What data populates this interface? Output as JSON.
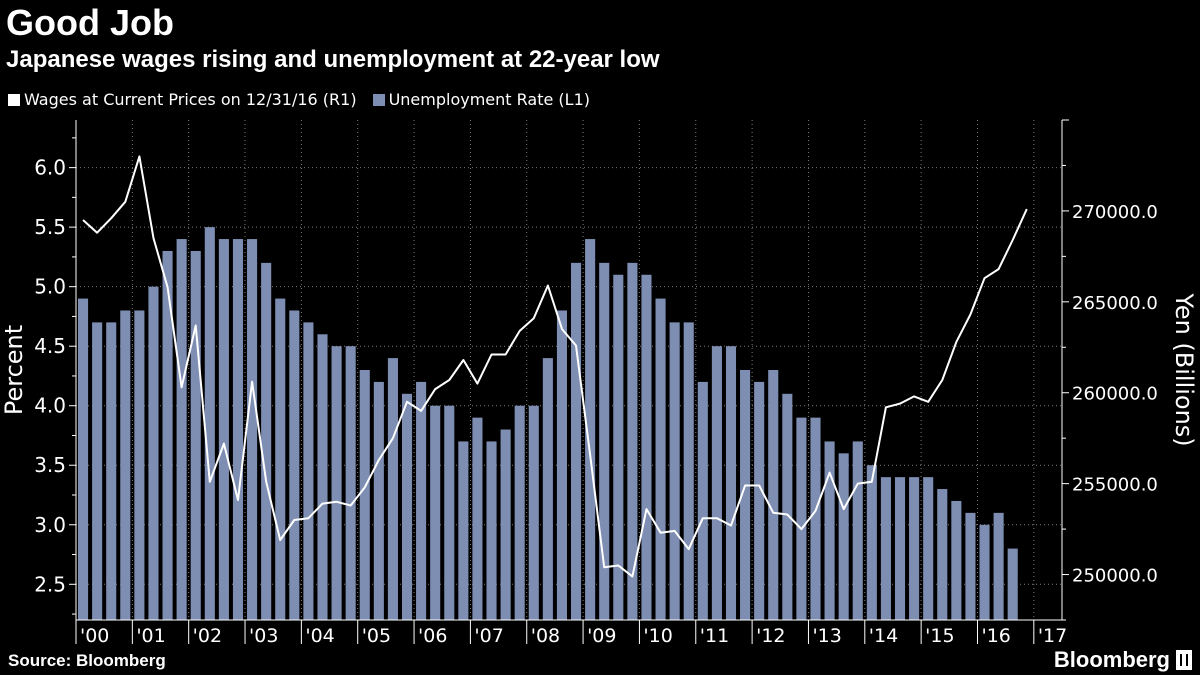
{
  "header": {
    "title": "Good Job",
    "subtitle": "Japanese wages rising and unemployment at 22-year low"
  },
  "legend": {
    "wages_label": "Wages at Current Prices on 12/31/16 (R1)",
    "unemployment_label": "Unemployment Rate (L1)"
  },
  "footer": {
    "source": "Source: Bloomberg",
    "brand": "Bloomberg"
  },
  "colors": {
    "background": "#000000",
    "bars": "#7e8eb3",
    "line": "#ffffff",
    "grid": "#7a7a7a"
  },
  "chart_data": {
    "type": "bar+line",
    "title": "Good Job",
    "subtitle": "Japanese wages rising and unemployment at 22-year low",
    "xlabel": "",
    "ylabel_left": "Percent",
    "ylabel_right": "Yen (Billions)",
    "ylim_left": [
      2.2,
      6.4
    ],
    "ylim_right": [
      247500,
      275000
    ],
    "yticks_left": [
      2.5,
      3.0,
      3.5,
      4.0,
      4.5,
      5.0,
      5.5,
      6.0
    ],
    "ytick_labels_left": [
      "2.5",
      "3.0",
      "3.5",
      "4.0",
      "4.5",
      "5.0",
      "5.5",
      "6.0"
    ],
    "yticks_right": [
      250000,
      255000,
      260000,
      265000,
      270000
    ],
    "ytick_labels_right": [
      "250000.0",
      "255000.0",
      "260000.0",
      "265000.0",
      "270000.0"
    ],
    "year_labels": [
      "'00",
      "'01",
      "'02",
      "'03",
      "'04",
      "'05",
      "'06",
      "'07",
      "'08",
      "'09",
      "'10",
      "'11",
      "'12",
      "'13",
      "'14",
      "'15",
      "'16",
      "'17"
    ],
    "series": [
      {
        "name": "Unemployment Rate (L1)",
        "type": "bar",
        "axis": "left",
        "start": 2000.0,
        "step": 0.25,
        "values": [
          4.9,
          4.7,
          4.7,
          4.8,
          4.8,
          5.0,
          5.3,
          5.4,
          5.3,
          5.5,
          5.4,
          5.4,
          5.4,
          5.2,
          4.9,
          4.8,
          4.7,
          4.6,
          4.5,
          4.5,
          4.3,
          4.2,
          4.4,
          4.1,
          4.2,
          4.0,
          4.0,
          3.7,
          3.9,
          3.7,
          3.8,
          4.0,
          4.0,
          4.4,
          4.8,
          5.2,
          5.4,
          5.2,
          5.1,
          5.2,
          5.1,
          4.9,
          4.7,
          4.7,
          4.2,
          4.5,
          4.5,
          4.3,
          4.2,
          4.3,
          4.1,
          3.9,
          3.9,
          3.7,
          3.6,
          3.7,
          3.5,
          3.4,
          3.4,
          3.4,
          3.4,
          3.3,
          3.2,
          3.1,
          3.0,
          3.1,
          2.8
        ]
      },
      {
        "name": "Wages at Current Prices on 12/31/16 (R1)",
        "type": "line",
        "axis": "right",
        "start": 2000.0,
        "step": 0.25,
        "values": [
          269500,
          268800,
          269600,
          270500,
          273000,
          268500,
          265800,
          260300,
          263700,
          255100,
          257200,
          254100,
          260600,
          255100,
          251900,
          253000,
          253100,
          253900,
          254000,
          253800,
          254800,
          256300,
          257500,
          259500,
          259000,
          260200,
          260700,
          261800,
          260500,
          262100,
          262100,
          263400,
          264100,
          265900,
          263500,
          262600,
          256600,
          250400,
          250500,
          249900,
          253600,
          252300,
          252400,
          251400,
          253100,
          253100,
          252700,
          254900,
          254900,
          253400,
          253300,
          252500,
          253500,
          255600,
          253600,
          255000,
          255100,
          259200,
          259400,
          259800,
          259500,
          260700,
          262800,
          264300,
          266300,
          266800,
          268400,
          270100
        ]
      }
    ]
  }
}
